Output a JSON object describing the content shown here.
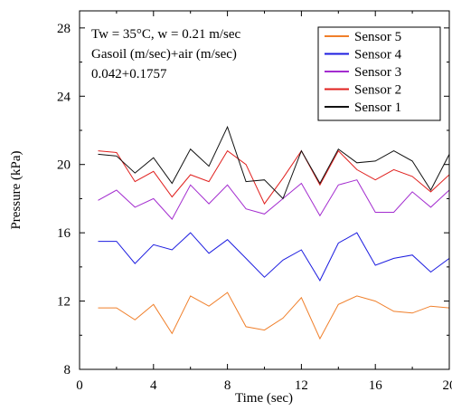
{
  "chart_data": {
    "type": "line",
    "xlabel": "Time (sec)",
    "ylabel": "Pressure (kPa)",
    "xlim": [
      0,
      20
    ],
    "ylim": [
      8,
      29
    ],
    "xticks": [
      0,
      4,
      8,
      12,
      16,
      20
    ],
    "yticks": [
      8,
      12,
      16,
      20,
      24,
      28
    ],
    "grid": false,
    "legend_position": "top-right",
    "annotations": [
      "Tw = 35°C, w = 0.21 m/sec",
      "Gasoil (m/sec)+air (m/sec)",
      "0.042+0.1757"
    ],
    "x": [
      1,
      2,
      3,
      4,
      5,
      6,
      7,
      8,
      9,
      10,
      11,
      12,
      13,
      14,
      15,
      16,
      17,
      18,
      19,
      20
    ],
    "series": [
      {
        "name": "Sensor 5",
        "color": "#f07f2a",
        "values": [
          11.6,
          11.6,
          10.9,
          11.8,
          10.1,
          12.3,
          11.7,
          12.5,
          10.5,
          10.3,
          11.0,
          12.2,
          9.8,
          11.8,
          12.3,
          12.0,
          11.4,
          11.3,
          11.7,
          11.6
        ]
      },
      {
        "name": "Sensor 4",
        "color": "#1d1de0",
        "values": [
          15.5,
          15.5,
          14.2,
          15.3,
          15.0,
          16.0,
          14.8,
          15.6,
          14.5,
          13.4,
          14.4,
          15.0,
          13.2,
          15.4,
          16.0,
          14.1,
          14.5,
          14.7,
          13.7,
          14.5
        ]
      },
      {
        "name": "Sensor 3",
        "color": "#a32ccf",
        "values": [
          17.9,
          18.5,
          17.5,
          18.0,
          16.8,
          18.8,
          17.7,
          18.8,
          17.4,
          17.1,
          18.0,
          18.9,
          17.0,
          18.8,
          19.1,
          17.2,
          17.2,
          18.4,
          17.5,
          18.5
        ]
      },
      {
        "name": "Sensor 2",
        "color": "#e0201e",
        "values": [
          20.8,
          20.7,
          19.0,
          19.6,
          18.1,
          19.4,
          19.0,
          20.8,
          20.0,
          17.7,
          19.2,
          20.8,
          18.8,
          20.8,
          19.7,
          19.1,
          19.7,
          19.3,
          18.4,
          19.4
        ]
      },
      {
        "name": "Sensor 1",
        "color": "#111111",
        "values": [
          20.6,
          20.5,
          19.5,
          20.4,
          18.9,
          20.9,
          19.9,
          22.2,
          19.0,
          19.1,
          18.0,
          20.8,
          18.9,
          20.9,
          20.1,
          20.2,
          20.8,
          20.2,
          18.5,
          20.6
        ]
      }
    ]
  }
}
